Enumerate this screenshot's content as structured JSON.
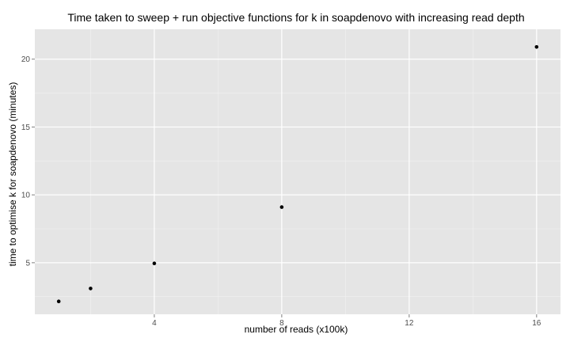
{
  "chart_data": {
    "type": "scatter",
    "title": "Time taken to sweep + run objective functions for k in soapdenovo with increasing read depth",
    "xlabel": "number of reads (x100k)",
    "ylabel": "time to optimise k for soapdenovo (minutes)",
    "xlim": [
      0.25,
      16.75
    ],
    "ylim": [
      1.2,
      22.2
    ],
    "x_ticks": [
      4,
      8,
      12,
      16
    ],
    "y_ticks": [
      5,
      10,
      15,
      20
    ],
    "grid": true,
    "panel_background": "#e5e5e5",
    "grid_color": "#ffffff",
    "point_color": "#000000",
    "points": [
      {
        "x": 1,
        "y": 2.15
      },
      {
        "x": 2,
        "y": 3.1
      },
      {
        "x": 4,
        "y": 4.95
      },
      {
        "x": 8,
        "y": 9.1
      },
      {
        "x": 16,
        "y": 20.9
      }
    ]
  }
}
